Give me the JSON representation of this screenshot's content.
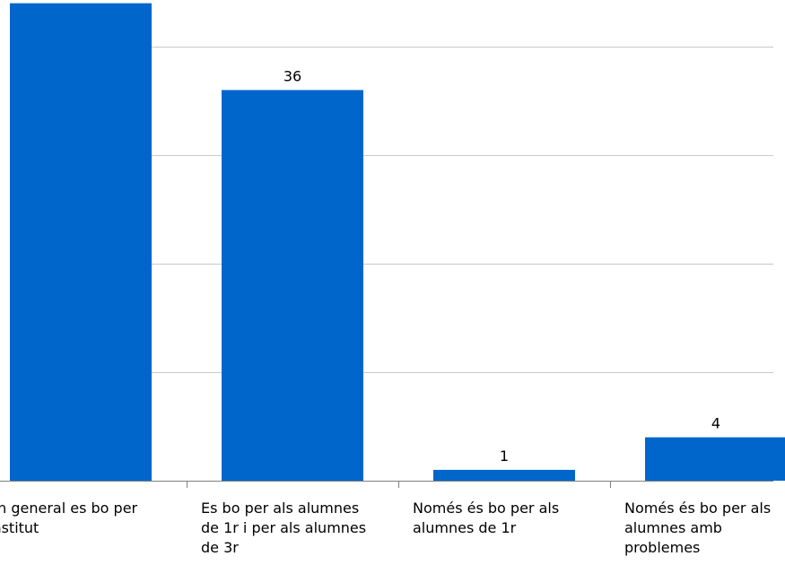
{
  "chart_data": {
    "type": "bar",
    "categories": [
      "En general es bo per institut",
      "Es bo per als alumnes de 1r i per als alumnes de 3r",
      "Només és bo per als alumnes de 1r",
      "Només és bo per als alumnes amb problemes"
    ],
    "values": [
      44,
      36,
      1,
      4
    ],
    "data_labels": [
      "",
      "36",
      "1",
      "4"
    ],
    "ylim": [
      0,
      43
    ],
    "gridlines": [
      10,
      20,
      30,
      40
    ],
    "grid": true,
    "legend": "none",
    "bar_color": "#0066cc",
    "gridline_color": "#c8c8c8",
    "axis_color": "#808080",
    "text_color": "#000000"
  }
}
